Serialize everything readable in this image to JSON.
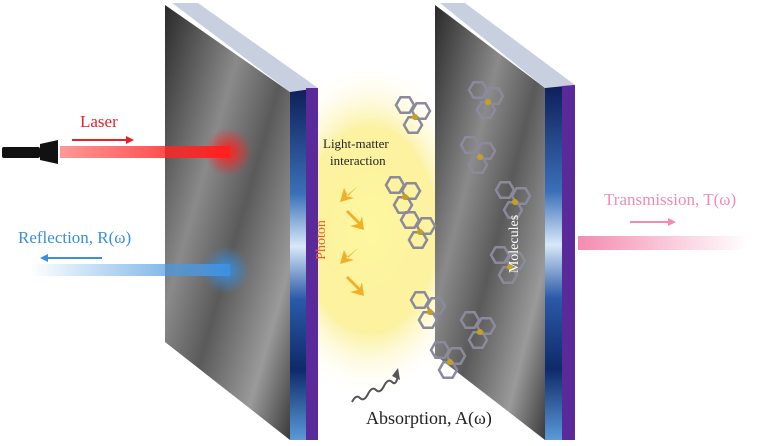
{
  "labels": {
    "laser": "Laser",
    "reflection": "Reflection, R(ω)",
    "transmission": "Transmission, T(ω)",
    "light_matter_line1": "Light-matter",
    "light_matter_line2": "interaction",
    "photon": "Photon",
    "molecules": "Molecules",
    "absorption": "Absorption, A(ω)"
  },
  "colors": {
    "laser": "#e8202a",
    "reflection": "#3a8fd8",
    "transmission": "#f28cac",
    "photon": "#f0a81c",
    "mirror_side": "#1e3f8a",
    "mirror_edge": "#6a2fa0"
  },
  "icons": [
    "flashlight-icon",
    "laser-arrow-icon",
    "reflection-arrow-icon",
    "transmission-arrow-icon",
    "photon-arrow-icon",
    "wavy-arrow-icon",
    "molecule-icon"
  ]
}
